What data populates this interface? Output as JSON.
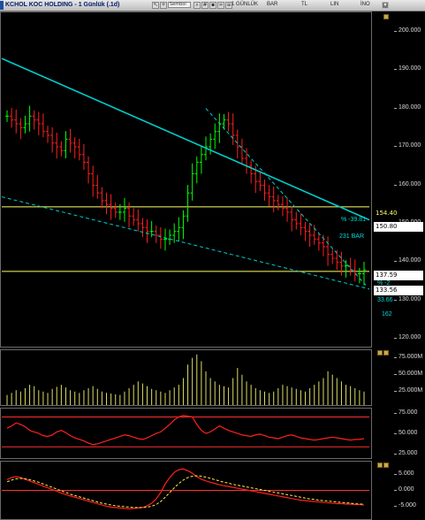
{
  "window": {
    "title": "KCHOL KOC HOLDING - 1 Günlük (.1d)",
    "search_box": "Sembol",
    "period": "1 GÜNLÜK",
    "chart_type": "BAR",
    "currency": "TL",
    "scale": "LIN",
    "indicators_menu": "İNO",
    "toolbar_icons": [
      "cursor-icon",
      "crosshair-icon",
      "zoom-icon",
      "grid-icon",
      "save-icon"
    ]
  },
  "price_panel": {
    "y_ticks": [
      "200.000",
      "190.000",
      "180.000",
      "170.000",
      "160.000",
      "150.000",
      "140.000",
      "130.000",
      "120.000"
    ],
    "labels": [
      {
        "text": "154.40",
        "bg": "#ffff66",
        "fg": "#000"
      },
      {
        "text": "150.80",
        "bg": "#ffffff",
        "fg": "#000"
      },
      {
        "text": "137.59",
        "bg": "#ffffff",
        "fg": "#000"
      },
      {
        "text": "133.56",
        "bg": "#ffffff",
        "fg": "#000"
      }
    ],
    "annotations": {
      "percent_top": "% -39.81",
      "bars_top": "231 BAR",
      "percent_bottom": "% -2",
      "percent_bottom2": "33.66",
      "bars_bottom": "162"
    },
    "hlines": [
      154.4,
      137.6
    ]
  },
  "volume_panel": {
    "y_ticks": [
      "75.000M",
      "50.000M",
      "25.000M"
    ]
  },
  "rsi_panel": {
    "y_ticks": [
      "75.000",
      "50.000",
      "25.000"
    ],
    "levels": [
      70,
      30
    ]
  },
  "macd_panel": {
    "y_ticks": [
      "5.000",
      "0.000",
      "-5.000"
    ]
  },
  "colors": {
    "up": "#00ff00",
    "down": "#ff2020",
    "trend": "#00cccc",
    "level": "#ffff66"
  },
  "chart_data": {
    "type": "line",
    "title": "KCHOL KOC HOLDING - 1 Günlük (.1d)",
    "ylim": [
      118,
      205
    ],
    "close_series": [
      178,
      177,
      176,
      175,
      176,
      178,
      177,
      176,
      174,
      173,
      171,
      170,
      169,
      172,
      171,
      170,
      168,
      166,
      163,
      160,
      158,
      156,
      155,
      154,
      153,
      153,
      154,
      152,
      151,
      150,
      149,
      148,
      148,
      147,
      146,
      146,
      147,
      148,
      149,
      152,
      158,
      163,
      166,
      168,
      170,
      172,
      174,
      176,
      177,
      176,
      173,
      170,
      167,
      165,
      163,
      161,
      160,
      158,
      157,
      156,
      155,
      154,
      153,
      151,
      150,
      149,
      148,
      147,
      146,
      145,
      144,
      142,
      141,
      140,
      139,
      139,
      138,
      137,
      137,
      138
    ],
    "volume_M": [
      15,
      18,
      22,
      20,
      25,
      30,
      28,
      22,
      20,
      18,
      24,
      27,
      30,
      26,
      22,
      20,
      18,
      22,
      25,
      28,
      24,
      20,
      18,
      17,
      16,
      15,
      20,
      25,
      30,
      35,
      32,
      28,
      24,
      22,
      20,
      18,
      22,
      26,
      30,
      40,
      60,
      70,
      75,
      65,
      50,
      40,
      35,
      30,
      28,
      26,
      40,
      55,
      45,
      35,
      30,
      25,
      22,
      20,
      18,
      20,
      25,
      30,
      28,
      26,
      24,
      22,
      20,
      25,
      30,
      35,
      40,
      50,
      45,
      40,
      35,
      30,
      28,
      25,
      22,
      20
    ],
    "rsi": [
      55,
      58,
      62,
      60,
      57,
      52,
      50,
      48,
      45,
      44,
      46,
      50,
      52,
      49,
      45,
      42,
      40,
      38,
      35,
      33,
      34,
      36,
      38,
      40,
      42,
      44,
      46,
      45,
      43,
      41,
      40,
      42,
      45,
      48,
      50,
      55,
      60,
      66,
      70,
      72,
      71,
      70,
      60,
      52,
      48,
      50,
      54,
      58,
      55,
      52,
      50,
      48,
      46,
      45,
      44,
      46,
      47,
      45,
      43,
      42,
      41,
      43,
      45,
      46,
      44,
      42,
      41,
      40,
      39,
      40,
      41,
      42,
      43,
      42,
      41,
      40,
      39,
      40,
      40,
      41
    ],
    "macd": [
      2.5,
      3,
      3.2,
      3,
      2.6,
      2.2,
      1.8,
      1.4,
      1,
      0.6,
      0.2,
      -0.2,
      -0.6,
      -1,
      -1.3,
      -1.6,
      -1.9,
      -2.2,
      -2.5,
      -2.8,
      -3.1,
      -3.4,
      -3.7,
      -3.9,
      -4,
      -4.1,
      -4.2,
      -4.3,
      -4.2,
      -4.1,
      -4,
      -3.6,
      -3,
      -2,
      -0.5,
      1.5,
      3,
      4.2,
      4.8,
      5,
      4.6,
      4,
      3.2,
      2.6,
      2.2,
      1.9,
      1.6,
      1.3,
      1.1,
      0.9,
      0.7,
      0.5,
      0.3,
      0.1,
      -0.1,
      -0.3,
      -0.5,
      -0.7,
      -0.9,
      -1.1,
      -1.3,
      -1.5,
      -1.7,
      -1.9,
      -2.1,
      -2.3,
      -2.4,
      -2.5,
      -2.6,
      -2.7,
      -2.8,
      -2.9,
      -3,
      -3.1,
      -3.1,
      -3.2,
      -3.2,
      -3.3,
      -3.3,
      -3.4
    ],
    "macd_signal": [
      2,
      2.4,
      2.7,
      2.8,
      2.7,
      2.5,
      2.2,
      1.9,
      1.5,
      1.1,
      0.7,
      0.3,
      -0.1,
      -0.5,
      -0.9,
      -1.2,
      -1.5,
      -1.8,
      -2.1,
      -2.4,
      -2.7,
      -3,
      -3.2,
      -3.4,
      -3.6,
      -3.7,
      -3.8,
      -3.9,
      -4,
      -4,
      -4,
      -3.9,
      -3.7,
      -3.3,
      -2.6,
      -1.6,
      -0.5,
      0.6,
      1.6,
      2.4,
      3,
      3.3,
      3.4,
      3.3,
      3.1,
      2.8,
      2.5,
      2.2,
      1.9,
      1.7,
      1.4,
      1.2,
      1,
      0.8,
      0.6,
      0.4,
      0.2,
      0,
      -0.2,
      -0.4,
      -0.6,
      -0.8,
      -1,
      -1.2,
      -1.4,
      -1.6,
      -1.8,
      -2,
      -2.1,
      -2.3,
      -2.4,
      -2.5,
      -2.6,
      -2.7,
      -2.8,
      -2.9,
      -3,
      -3.1,
      -3.2,
      -3.2
    ]
  }
}
